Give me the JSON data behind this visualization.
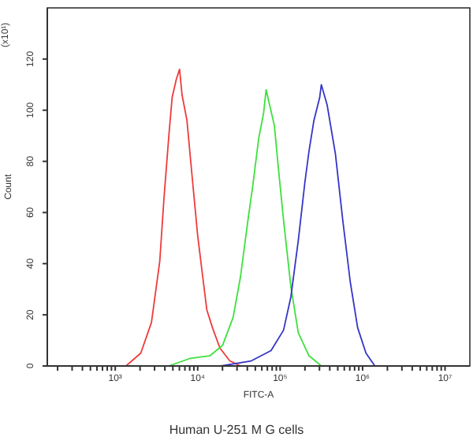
{
  "chart_data": {
    "type": "line",
    "xlabel": "FITC-A",
    "ylabel": "Count",
    "annotations": [
      "(x10¹)",
      "Human U-251 M G cells"
    ],
    "log": "x",
    "marker": "none",
    "line_style": "solid",
    "grid": false,
    "legend": false,
    "xlim": [
      150,
      20000000
    ],
    "ylim": [
      0,
      140
    ],
    "yticks": [
      0,
      20,
      40,
      60,
      80,
      100,
      120
    ],
    "xticks": [
      {
        "value": 200,
        "label": null
      },
      {
        "value": 300,
        "label": null
      },
      {
        "value": 400,
        "label": null
      },
      {
        "value": 500,
        "label": null
      },
      {
        "value": 600,
        "label": null
      },
      {
        "value": 700,
        "label": null
      },
      {
        "value": 800,
        "label": null
      },
      {
        "value": 900,
        "label": null
      },
      {
        "value": 1000,
        "label": "10³"
      },
      {
        "value": 2000,
        "label": null
      },
      {
        "value": 3000,
        "label": null
      },
      {
        "value": 4000,
        "label": null
      },
      {
        "value": 5000,
        "label": null
      },
      {
        "value": 6000,
        "label": null
      },
      {
        "value": 7000,
        "label": null
      },
      {
        "value": 8000,
        "label": null
      },
      {
        "value": 9000,
        "label": null
      },
      {
        "value": 10000,
        "label": "10⁴"
      },
      {
        "value": 20000,
        "label": null
      },
      {
        "value": 30000,
        "label": null
      },
      {
        "value": 40000,
        "label": null
      },
      {
        "value": 50000,
        "label": null
      },
      {
        "value": 60000,
        "label": null
      },
      {
        "value": 70000,
        "label": null
      },
      {
        "value": 80000,
        "label": null
      },
      {
        "value": 90000,
        "label": null
      },
      {
        "value": 100000,
        "label": "10⁵"
      },
      {
        "value": 200000,
        "label": null
      },
      {
        "value": 300000,
        "label": null
      },
      {
        "value": 400000,
        "label": null
      },
      {
        "value": 500000,
        "label": null
      },
      {
        "value": 600000,
        "label": null
      },
      {
        "value": 700000,
        "label": null
      },
      {
        "value": 800000,
        "label": null
      },
      {
        "value": 900000,
        "label": null
      },
      {
        "value": 1000000,
        "label": "10⁶"
      },
      {
        "value": 2000000,
        "label": null
      },
      {
        "value": 3000000,
        "label": null
      },
      {
        "value": 4000000,
        "label": null
      },
      {
        "value": 5000000,
        "label": null
      },
      {
        "value": 6000000,
        "label": null
      },
      {
        "value": 7000000,
        "label": null
      },
      {
        "value": 8000000,
        "label": null
      },
      {
        "value": 9000000,
        "label": null
      },
      {
        "value": 10000000,
        "label": "10⁷"
      }
    ],
    "series": [
      {
        "color": "#ee3b3b",
        "x": [
          1350,
          2040,
          2750,
          3470,
          3890,
          4470,
          4900,
          5500,
          6030,
          6460,
          7410,
          8510,
          10000,
          11500,
          12900,
          15100,
          18600,
          24500,
          33100
        ],
        "values": [
          0,
          5,
          17,
          41,
          65,
          90,
          105,
          112,
          116,
          106,
          96,
          75,
          51,
          35,
          22,
          15,
          7,
          2,
          0
        ]
      },
      {
        "color": "#3ee03e",
        "x": [
          4470,
          8130,
          14100,
          20000,
          26900,
          33100,
          40700,
          46800,
          55000,
          63100,
          67600,
          85100,
          95500,
          110000,
          135000,
          166000,
          224000,
          316000
        ],
        "values": [
          0,
          3,
          4,
          8,
          19,
          35,
          57,
          71,
          89,
          99,
          108,
          94,
          77,
          57,
          31,
          13,
          4,
          0
        ]
      },
      {
        "color": "#3535c8",
        "x": [
          19100,
          44700,
          77600,
          110000,
          135000,
          166000,
          200000,
          224000,
          257000,
          302000,
          316000,
          372000,
          468000,
          575000,
          708000,
          871000,
          1100000,
          1410000
        ],
        "values": [
          0,
          2,
          6,
          14,
          27,
          49,
          72,
          84,
          96,
          105,
          110,
          102,
          83,
          57,
          33,
          15,
          5,
          0
        ]
      }
    ]
  }
}
